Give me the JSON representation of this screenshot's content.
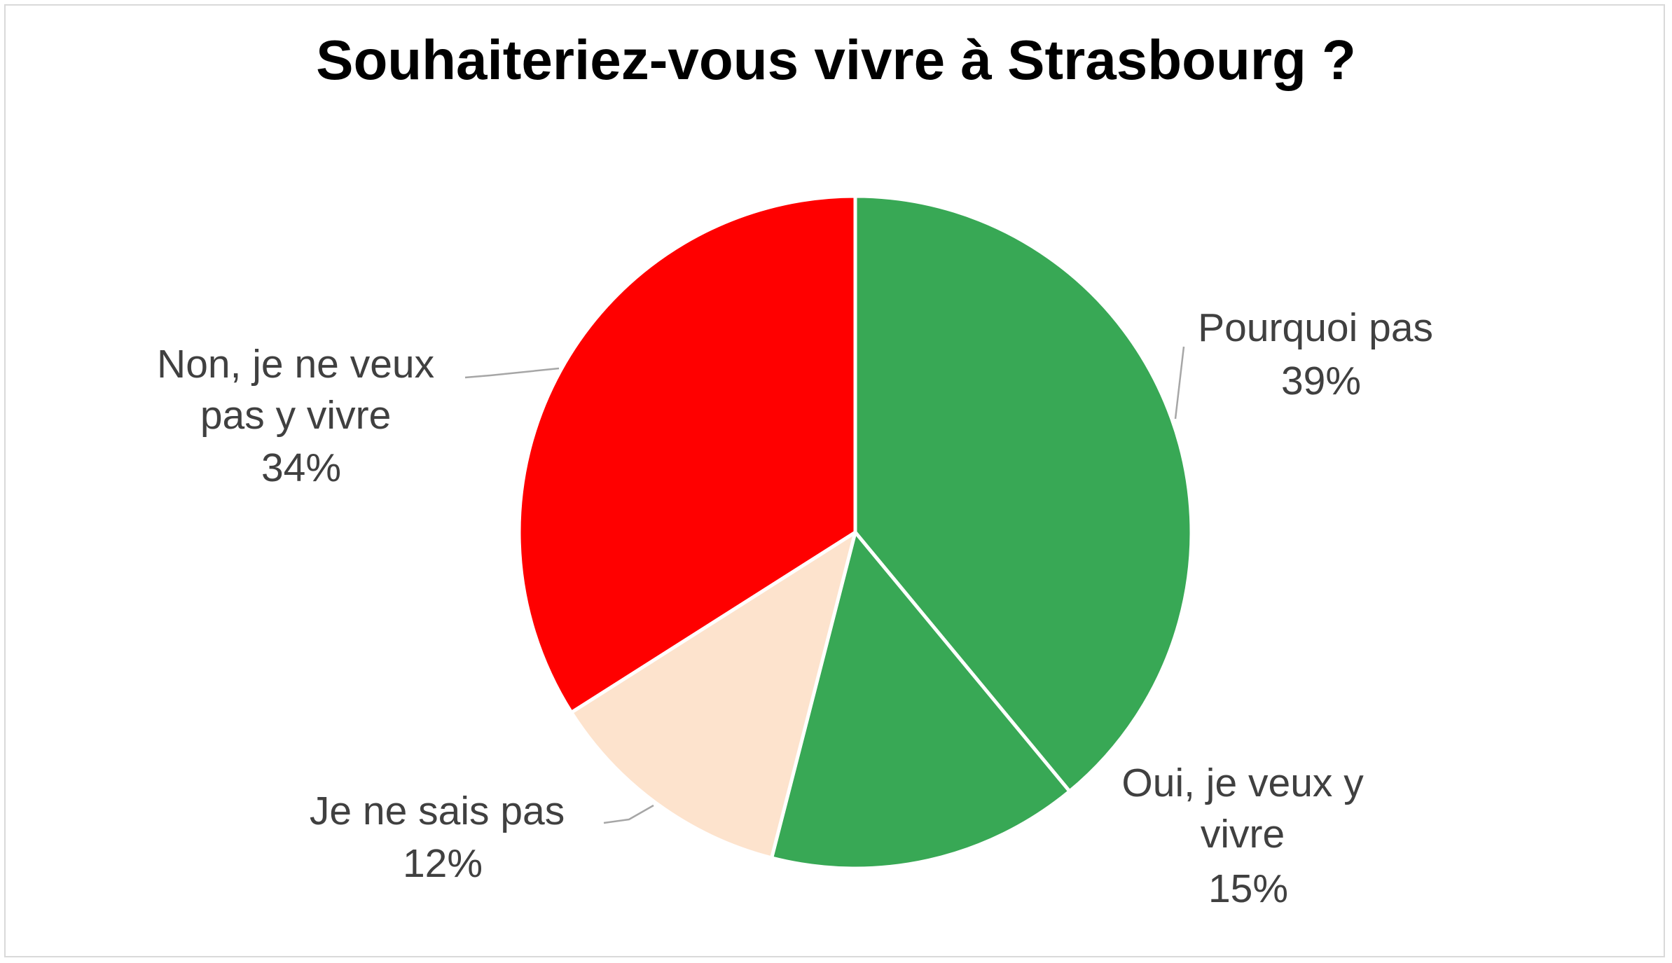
{
  "chart_data": {
    "type": "pie",
    "title": "Souhaiteriez-vous vivre à Strasbourg ?",
    "slices": [
      {
        "label": "Pourquoi pas",
        "percent_label": "39%",
        "value": 39,
        "color": "#38a855"
      },
      {
        "label": "Oui, je veux y vivre",
        "percent_label": "15%",
        "value": 15,
        "color": "#38a855"
      },
      {
        "label": "Je ne sais pas",
        "percent_label": "12%",
        "value": 12,
        "color": "#fde3cd"
      },
      {
        "label": "Non, je ne veux pas y vivre",
        "percent_label": "34%",
        "value": 34,
        "color": "#ff0000"
      }
    ]
  }
}
